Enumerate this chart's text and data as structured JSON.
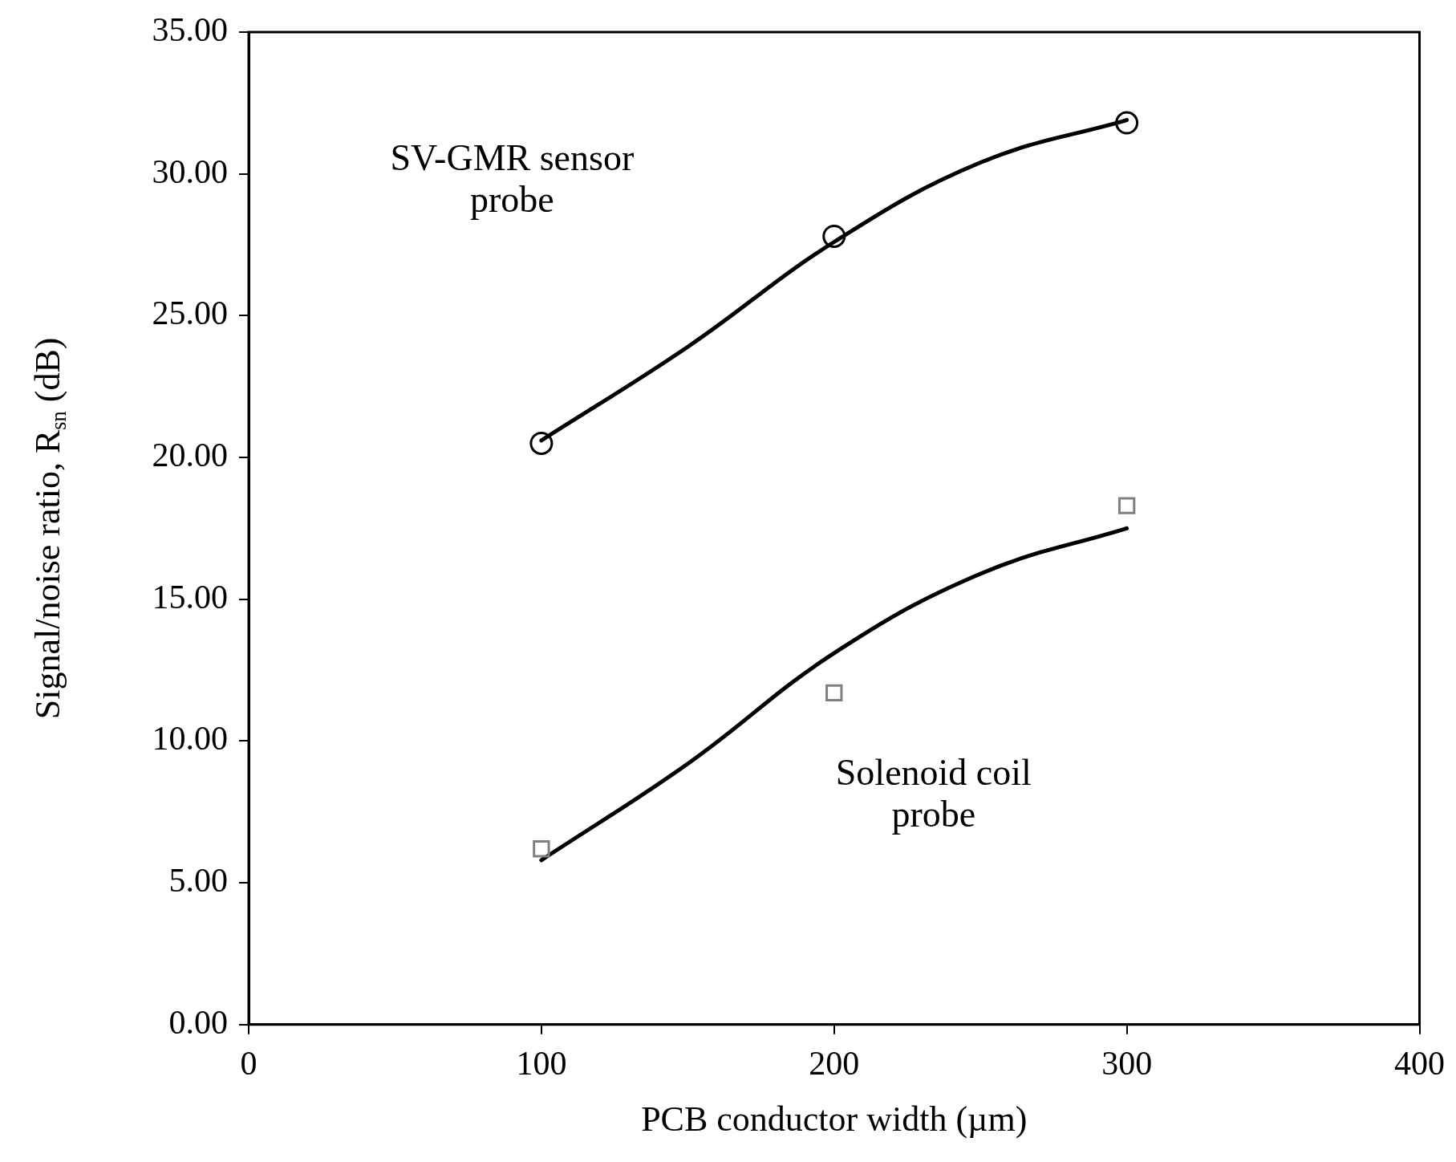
{
  "chart_data": {
    "type": "scatter",
    "xlabel": "PCB conductor width (µm)",
    "ylabel": "Signal/noise ratio, R$_{sn}$ (dB)",
    "xlim": [
      0,
      400
    ],
    "xticks": [
      0,
      100,
      200,
      300,
      400
    ],
    "ylim": [
      0,
      35
    ],
    "yticks": [
      {
        "value": 0,
        "label": "0.00"
      },
      {
        "value": 5,
        "label": "5.00"
      },
      {
        "value": 10,
        "label": "10.00"
      },
      {
        "value": 15,
        "label": "15.00"
      },
      {
        "value": 20,
        "label": "20.00"
      },
      {
        "value": 25,
        "label": "25.00"
      },
      {
        "value": 30,
        "label": "30.00"
      },
      {
        "value": 35,
        "label": "35.00"
      }
    ],
    "grid": false,
    "legend": false,
    "series": [
      {
        "type": "scatter",
        "marker": "circle",
        "color": "#000000",
        "x": [
          100,
          200,
          300
        ],
        "values": [
          20.5,
          27.8,
          31.8
        ]
      },
      {
        "type": "scatter",
        "marker": "square",
        "color": "#808080",
        "x": [
          100,
          200,
          300
        ],
        "values": [
          6.2,
          11.7,
          18.3
        ]
      },
      {
        "type": "line",
        "marker": "none",
        "line_style": "solid",
        "color": "#000000",
        "x": [
          100,
          150,
          200,
          250,
          300
        ],
        "values": [
          20.6,
          23.9,
          27.6,
          30.4,
          31.9
        ]
      },
      {
        "type": "line",
        "marker": "none",
        "line_style": "solid",
        "color": "#000000",
        "x": [
          100,
          150,
          200,
          250,
          300
        ],
        "values": [
          5.8,
          9.2,
          13.1,
          15.9,
          17.5
        ]
      }
    ],
    "annotations": [
      "SV-GMR sensor\nprobe",
      "Solenoid coil\nprobe"
    ]
  }
}
